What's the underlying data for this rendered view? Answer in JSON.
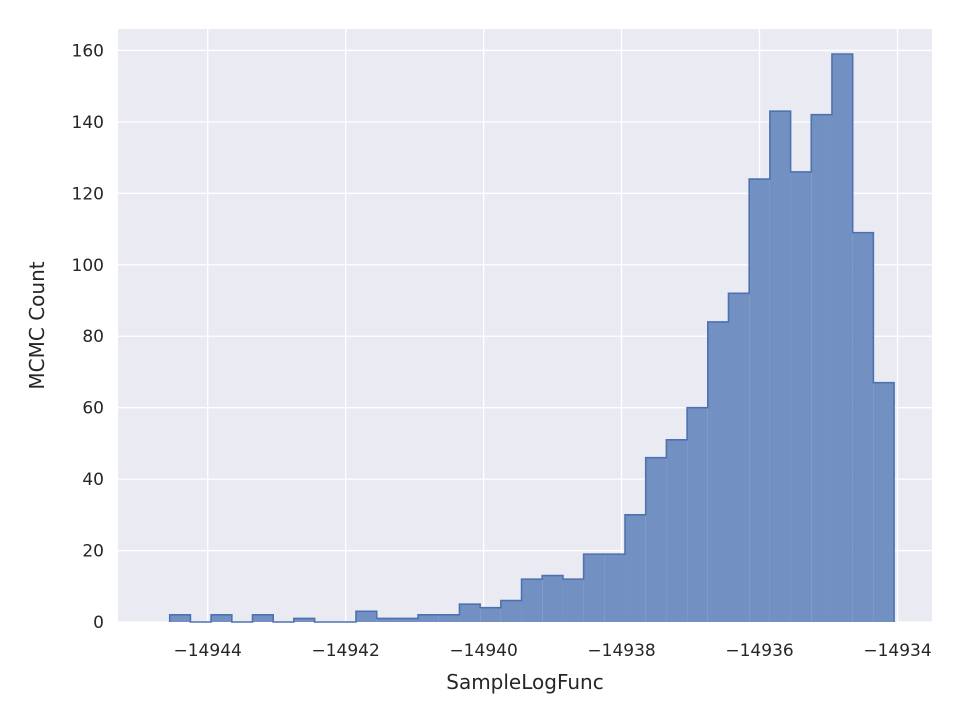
{
  "chart_data": {
    "type": "histogram",
    "xlabel": "SampleLogFunc",
    "ylabel": "MCMC Count",
    "xlim": [
      -14945.3,
      -14933.5
    ],
    "ylim": [
      0,
      166
    ],
    "xticks": [
      -14944,
      -14942,
      -14940,
      -14938,
      -14936,
      -14934
    ],
    "xtick_labels": [
      "−14944",
      "−14942",
      "−14940",
      "−14938",
      "−14936",
      "−14934"
    ],
    "yticks": [
      0,
      20,
      40,
      60,
      80,
      100,
      120,
      140,
      160
    ],
    "ytick_labels": [
      "0",
      "20",
      "40",
      "60",
      "80",
      "100",
      "120",
      "140",
      "160"
    ],
    "grid": true,
    "style": "step-filled",
    "colors": {
      "background": "#EAEAF2",
      "fill": "#7390C2",
      "edge": "#4C72B0",
      "grid": "#FFFFFF",
      "text": "#262626"
    },
    "bins": {
      "start": -14944.55,
      "width": 0.3,
      "counts": [
        2,
        0,
        2,
        0,
        2,
        0,
        1,
        0,
        0,
        3,
        1,
        1,
        2,
        2,
        5,
        4,
        6,
        12,
        13,
        12,
        19,
        19,
        30,
        46,
        51,
        60,
        84,
        92,
        124,
        143,
        126,
        142,
        159,
        109,
        67
      ]
    }
  }
}
